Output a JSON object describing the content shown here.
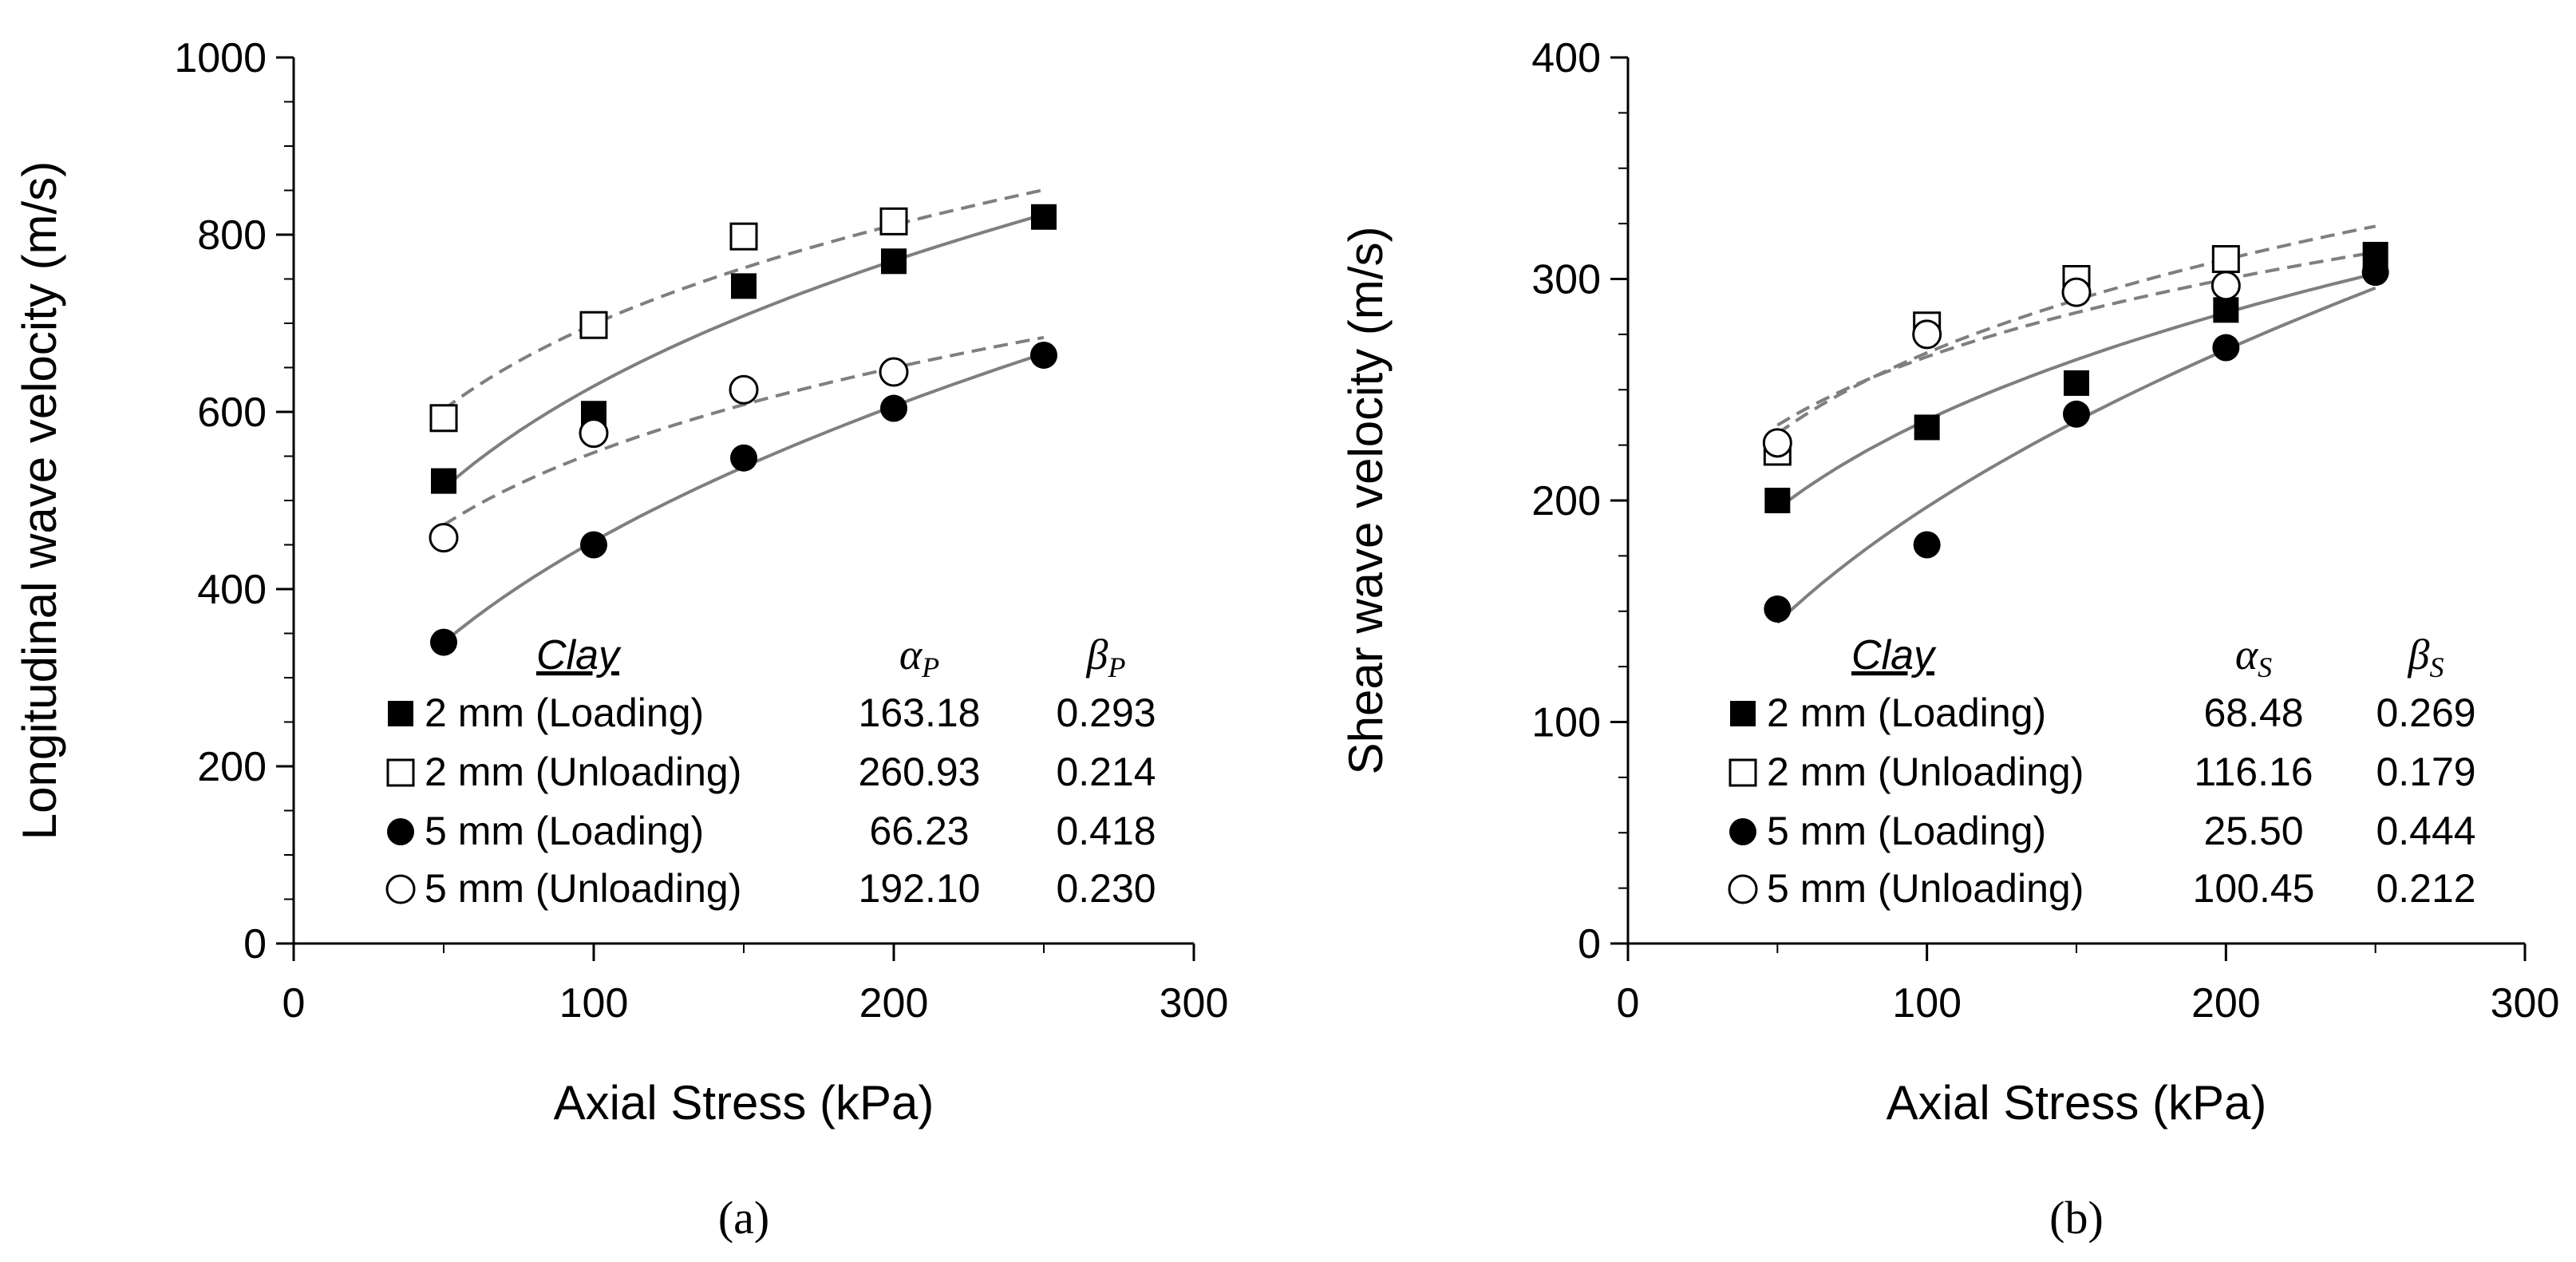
{
  "chart_data": [
    {
      "type": "scatter",
      "panel_label": "(a)",
      "title": "",
      "xlabel": "Axial Stress (kPa)",
      "ylabel": "Longitudinal wave velocity (m/s)",
      "xlim": [
        0,
        300
      ],
      "ylim": [
        0,
        1000
      ],
      "xticks": [
        0,
        100,
        200,
        300
      ],
      "yticks": [
        0,
        200,
        400,
        600,
        800,
        1000
      ],
      "xtick_labels": [
        "0",
        "100",
        "200",
        "300"
      ],
      "ytick_labels": [
        "0",
        "200",
        "400",
        "600",
        "800",
        "1000"
      ],
      "legend_header": "Clay",
      "alpha_label": "αP",
      "beta_label": "βP",
      "series": [
        {
          "name": "2 mm (Loading)",
          "marker": "square-filled",
          "line": "solid",
          "alpha": "163.18",
          "beta": "0.293",
          "alpha_val": 163.18,
          "beta_val": 0.293,
          "x": [
            50,
            100,
            150,
            200,
            250
          ],
          "y": [
            522,
            598,
            742,
            770,
            820
          ]
        },
        {
          "name": "2 mm (Unloading)",
          "marker": "square-open",
          "line": "dashed",
          "alpha": "260.93",
          "beta": "0.214",
          "alpha_val": 260.93,
          "beta_val": 0.214,
          "x": [
            50,
            100,
            150,
            200
          ],
          "y": [
            593,
            698,
            798,
            815
          ]
        },
        {
          "name": "5 mm (Loading)",
          "marker": "circle-filled",
          "line": "solid",
          "alpha": "66.23",
          "beta": "0.418",
          "alpha_val": 66.23,
          "beta_val": 0.418,
          "x": [
            50,
            100,
            150,
            200,
            250
          ],
          "y": [
            340,
            450,
            548,
            604,
            664
          ]
        },
        {
          "name": "5 mm (Unloading)",
          "marker": "circle-open",
          "line": "dashed",
          "alpha": "192.10",
          "beta": "0.230",
          "alpha_val": 192.1,
          "beta_val": 0.23,
          "x": [
            50,
            100,
            150,
            200
          ],
          "y": [
            458,
            576,
            625,
            645
          ]
        }
      ]
    },
    {
      "type": "scatter",
      "panel_label": "(b)",
      "title": "",
      "xlabel": "Axial Stress (kPa)",
      "ylabel": "Shear wave velocity (m/s)",
      "xlim": [
        0,
        300
      ],
      "ylim": [
        0,
        400
      ],
      "xticks": [
        0,
        100,
        200,
        300
      ],
      "yticks": [
        0,
        100,
        200,
        300,
        400
      ],
      "xtick_labels": [
        "0",
        "100",
        "200",
        "300"
      ],
      "ytick_labels": [
        "0",
        "100",
        "200",
        "300",
        "400"
      ],
      "legend_header": "Clay",
      "alpha_label": "αS",
      "beta_label": "βS",
      "series": [
        {
          "name": "2 mm (Loading)",
          "marker": "square-filled",
          "line": "solid",
          "alpha": "68.48",
          "beta": "0.269",
          "alpha_val": 68.48,
          "beta_val": 0.269,
          "x": [
            50,
            100,
            150,
            200,
            250
          ],
          "y": [
            200,
            233,
            253,
            286,
            311
          ]
        },
        {
          "name": "2 mm (Unloading)",
          "marker": "square-open",
          "line": "dashed",
          "alpha": "116.16",
          "beta": "0.179",
          "alpha_val": 116.16,
          "beta_val": 0.179,
          "x": [
            50,
            100,
            150,
            200
          ],
          "y": [
            222,
            279,
            300,
            309
          ]
        },
        {
          "name": "5 mm (Loading)",
          "marker": "circle-filled",
          "line": "solid",
          "alpha": "25.50",
          "beta": "0.444",
          "alpha_val": 25.5,
          "beta_val": 0.444,
          "x": [
            50,
            100,
            150,
            200,
            250
          ],
          "y": [
            151,
            180,
            239,
            269,
            303
          ]
        },
        {
          "name": "5 mm (Unloading)",
          "marker": "circle-open",
          "line": "dashed",
          "alpha": "100.45",
          "beta": "0.212",
          "alpha_val": 100.45,
          "beta_val": 0.212,
          "x": [
            50,
            100,
            150,
            200
          ],
          "y": [
            226,
            275,
            294,
            297
          ]
        }
      ]
    }
  ]
}
